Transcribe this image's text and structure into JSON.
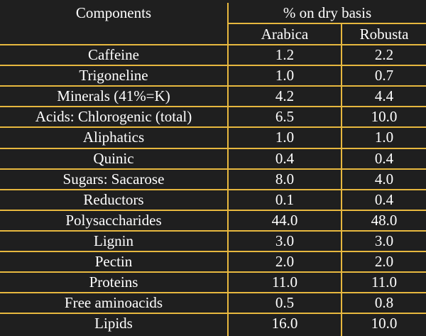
{
  "table": {
    "header": {
      "components": "Components",
      "group": "% on dry basis",
      "arabica": "Arabica",
      "robusta": "Robusta"
    },
    "rows": [
      {
        "component": "Caffeine",
        "arabica": "1.2",
        "robusta": "2.2"
      },
      {
        "component": "Trigoneline",
        "arabica": "1.0",
        "robusta": "0.7"
      },
      {
        "component": "Minerals (41%=K)",
        "arabica": "4.2",
        "robusta": "4.4"
      },
      {
        "component": "Acids: Chlorogenic  (total)",
        "arabica": "6.5",
        "robusta": "10.0"
      },
      {
        "component": "Aliphatics",
        "arabica": "1.0",
        "robusta": "1.0"
      },
      {
        "component": "Quinic",
        "arabica": "0.4",
        "robusta": "0.4"
      },
      {
        "component": "Sugars: Sacarose",
        "arabica": "8.0",
        "robusta": "4.0"
      },
      {
        "component": "Reductors",
        "arabica": "0.1",
        "robusta": "0.4"
      },
      {
        "component": "Polysaccharides",
        "arabica": "44.0",
        "robusta": "48.0"
      },
      {
        "component": "Lignin",
        "arabica": "3.0",
        "robusta": "3.0"
      },
      {
        "component": "Pectin",
        "arabica": "2.0",
        "robusta": "2.0"
      },
      {
        "component": "Proteins",
        "arabica": "11.0",
        "robusta": "11.0"
      },
      {
        "component": "Free aminoacids",
        "arabica": "0.5",
        "robusta": "0.8"
      },
      {
        "component": "Lipids",
        "arabica": "16.0",
        "robusta": "10.0"
      }
    ]
  },
  "colors": {
    "background": "#1f1f1f",
    "gridline": "#e7b83f",
    "text": "#ffffff"
  }
}
